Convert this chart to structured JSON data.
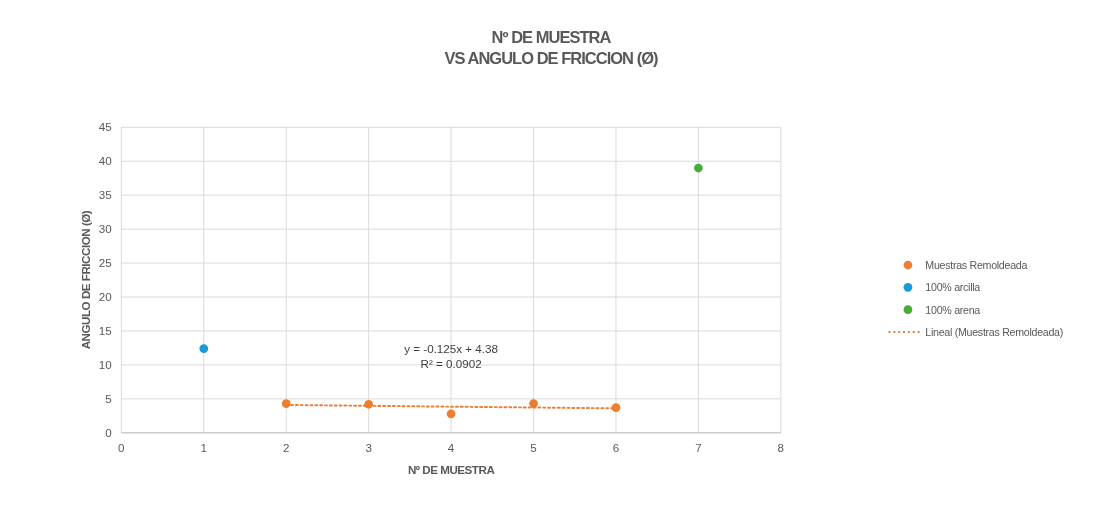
{
  "chart_data": {
    "type": "scatter",
    "title": "Nº DE MUESTRA\nVS ANGULO DE FRICCION (Ø)",
    "xlabel": "Nº DE MUESTRA",
    "ylabel": "ANGULO DE FRICCION (Ø)",
    "series": [
      {
        "name": "Muestras Remoldeada",
        "color": "#ed7d31",
        "x": [
          2,
          3,
          4,
          5,
          6
        ],
        "values": [
          4.3,
          4.2,
          2.8,
          4.3,
          3.7
        ],
        "marker": "circle"
      },
      {
        "name": "100% arcilla",
        "color": "#1a9ad6",
        "x": [
          1
        ],
        "values": [
          12.4
        ],
        "marker": "circle"
      },
      {
        "name": "100% arena",
        "color": "#4aab36",
        "x": [
          7
        ],
        "values": [
          39
        ],
        "marker": "circle"
      },
      {
        "name": "Lineal (Muestras Remoldeada)",
        "type": "line",
        "color": "#ed7d31",
        "x": [
          2,
          6
        ],
        "values": [
          4.1,
          3.6
        ],
        "line_style": "dotted",
        "marker": "none"
      }
    ],
    "annotations": [
      "y = -0.125x + 4.38",
      "R² = 0.0902"
    ],
    "xlim": [
      0,
      8
    ],
    "xticks": [
      0,
      1,
      2,
      3,
      4,
      5,
      6,
      7,
      8
    ],
    "ylim": [
      0,
      45
    ],
    "yticks": [
      0,
      5,
      10,
      15,
      20,
      25,
      30,
      35,
      40,
      45
    ],
    "grid": true,
    "legend": "right"
  }
}
